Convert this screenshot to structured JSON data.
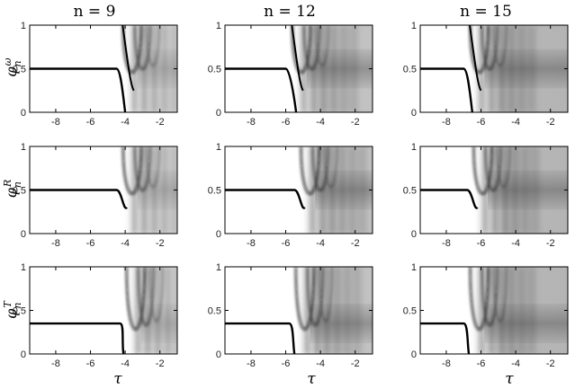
{
  "figure": {
    "titles": [
      "n = 9",
      "n = 12",
      "n = 15"
    ],
    "xlabel": "τ",
    "ylabels": [
      {
        "base": "φ",
        "sub": "n",
        "sup": "ω"
      },
      {
        "base": "φ",
        "sub": "n",
        "sup": "R"
      },
      {
        "base": "φ",
        "sub": "n",
        "sup": "T"
      }
    ],
    "xticks": [
      "-8",
      "-6",
      "-4",
      "-2"
    ],
    "yticks": [
      "0",
      "0.5",
      "1"
    ]
  },
  "chart_data": {
    "type": "heatmap",
    "layout": "3x3 grid",
    "columns_n": [
      9,
      12,
      15
    ],
    "rows": [
      "φ_n^ω",
      "φ_n^R",
      "φ_n^T"
    ],
    "xlabel": "τ",
    "xlim": [
      -9.5,
      -1.0
    ],
    "ylim": [
      0,
      1
    ],
    "colormap": "grayscale (dark = high density)",
    "panels": [
      {
        "row": "omega",
        "n": 9,
        "plateau": 0.5,
        "plateau_end": -4.5,
        "drop_to_zero": -4.0
      },
      {
        "row": "omega",
        "n": 12,
        "plateau": 0.5,
        "plateau_end": -6.0,
        "drop_to_zero": -5.4
      },
      {
        "row": "omega",
        "n": 15,
        "plateau": 0.5,
        "plateau_end": -7.0,
        "drop_to_zero": -6.5
      },
      {
        "row": "R",
        "n": 9,
        "plateau": 0.5,
        "plateau_end": -4.5,
        "drop_to_zero": null
      },
      {
        "row": "R",
        "n": 12,
        "plateau": 0.5,
        "plateau_end": -5.5,
        "drop_to_zero": null
      },
      {
        "row": "R",
        "n": 15,
        "plateau": 0.5,
        "plateau_end": -6.8,
        "drop_to_zero": null
      },
      {
        "row": "T",
        "n": 9,
        "plateau": 0.35,
        "plateau_end": -4.3,
        "drop_to_zero": -4.1
      },
      {
        "row": "T",
        "n": 12,
        "plateau": 0.35,
        "plateau_end": -5.8,
        "drop_to_zero": -5.5
      },
      {
        "row": "T",
        "n": 15,
        "plateau": 0.35,
        "plateau_end": -7.0,
        "drop_to_zero": -6.7
      }
    ]
  }
}
